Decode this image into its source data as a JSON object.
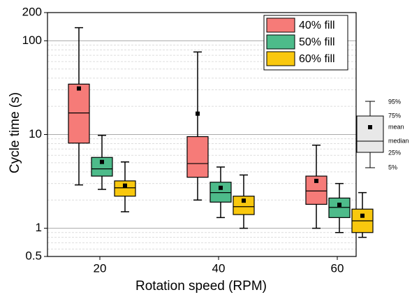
{
  "chart_data": {
    "type": "box",
    "x_label": "Rotation speed (RPM)",
    "y_label": "Cycle time (s)",
    "categories": [
      "20",
      "40",
      "60"
    ],
    "ylim": [
      0.5,
      200
    ],
    "yticks": [
      0.5,
      1,
      10,
      100,
      200
    ],
    "log_y": true,
    "grid": true,
    "legend_position": "upper right",
    "series": [
      {
        "name": "40% fill",
        "color": "#f67b78",
        "whisker_low": [
          2.9,
          2.0,
          1.0
        ],
        "q1": [
          8.1,
          3.5,
          1.8
        ],
        "median": [
          17,
          4.9,
          2.5
        ],
        "q3": [
          34.5,
          9.5,
          3.6
        ],
        "whisker_high": [
          138,
          76,
          7.7
        ],
        "mean": [
          31,
          16.7,
          3.2
        ]
      },
      {
        "name": "50% fill",
        "color": "#4dbb8a",
        "whisker_low": [
          2.6,
          1.3,
          0.9
        ],
        "q1": [
          3.6,
          1.9,
          1.3
        ],
        "median": [
          4.3,
          2.4,
          1.67
        ],
        "q3": [
          5.7,
          3.1,
          2.1
        ],
        "whisker_high": [
          9.8,
          4.5,
          3.0
        ],
        "mean": [
          5.1,
          2.7,
          1.78
        ]
      },
      {
        "name": "60% fill",
        "color": "#f9c80e",
        "whisker_low": [
          1.5,
          1.0,
          0.8
        ],
        "q1": [
          2.2,
          1.4,
          0.9
        ],
        "median": [
          2.7,
          1.7,
          1.2
        ],
        "q3": [
          3.2,
          2.2,
          1.6
        ],
        "whisker_high": [
          5.1,
          3.7,
          2.4
        ],
        "mean": [
          2.85,
          1.97,
          1.36
        ]
      }
    ],
    "box_legend": {
      "whisker_high": "95%",
      "q3": "75%",
      "mean": "mean",
      "median": "median",
      "q1": "25%",
      "whisker_low": "5%"
    }
  }
}
